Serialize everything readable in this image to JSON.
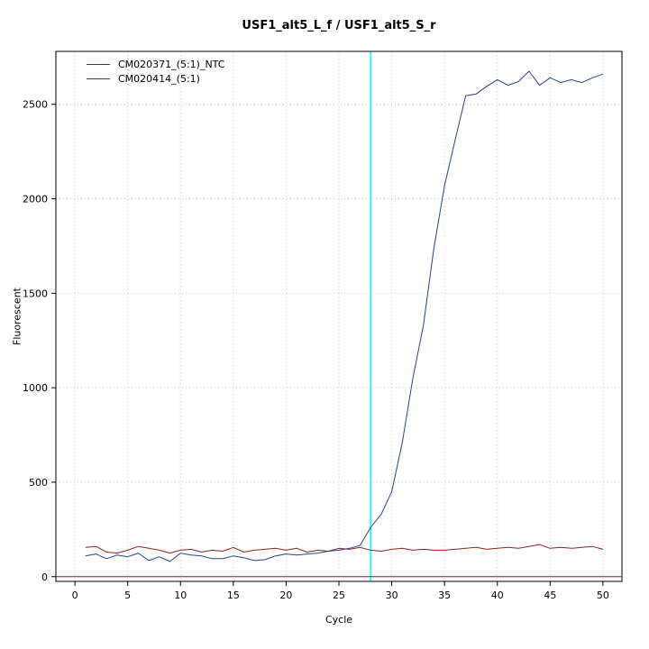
{
  "chart_data": {
    "type": "line",
    "title": "USF1_alt5_L_f / USF1_alt5_S_r",
    "xlabel": "Cycle",
    "ylabel": "Fluorescent",
    "xlim": [
      -1.8,
      51.8
    ],
    "ylim": [
      -25,
      2780
    ],
    "xticks": [
      0,
      5,
      10,
      15,
      20,
      25,
      30,
      35,
      40,
      45,
      50
    ],
    "yticks": [
      0,
      500,
      1000,
      1500,
      2000,
      2500
    ],
    "grid": true,
    "grid_color": "#c4c4c4",
    "legend_position": "top-left",
    "ct_line": {
      "x": 28,
      "color": "#00ffff"
    },
    "baseline": {
      "y": 0,
      "color": "#8b2323"
    },
    "x": [
      1,
      2,
      3,
      4,
      5,
      6,
      7,
      8,
      9,
      10,
      11,
      12,
      13,
      14,
      15,
      16,
      17,
      18,
      19,
      20,
      21,
      22,
      23,
      24,
      25,
      26,
      27,
      28,
      29,
      30,
      31,
      32,
      33,
      34,
      35,
      36,
      37,
      38,
      39,
      40,
      41,
      42,
      43,
      44,
      45,
      46,
      47,
      48,
      49,
      50
    ],
    "series": [
      {
        "name": "CM020371_(5:1)_NTC",
        "color": "#8b2323",
        "values": [
          155,
          160,
          130,
          125,
          140,
          160,
          150,
          140,
          125,
          140,
          145,
          130,
          140,
          135,
          155,
          130,
          140,
          145,
          150,
          140,
          150,
          130,
          140,
          135,
          150,
          145,
          155,
          140,
          135,
          145,
          150,
          140,
          145,
          140,
          140,
          145,
          150,
          155,
          145,
          150,
          155,
          150,
          160,
          170,
          150,
          155,
          150,
          155,
          160,
          145
        ]
      },
      {
        "name": "CM020414_(5:1)",
        "color": "#27408b",
        "values": [
          110,
          120,
          95,
          115,
          105,
          125,
          85,
          105,
          80,
          125,
          115,
          110,
          95,
          95,
          110,
          100,
          85,
          90,
          110,
          120,
          115,
          120,
          125,
          135,
          140,
          150,
          165,
          260,
          330,
          450,
          710,
          1050,
          1330,
          1740,
          2070,
          2310,
          2545,
          2555,
          2595,
          2630,
          2600,
          2620,
          2675,
          2600,
          2640,
          2615,
          2630,
          2615,
          2640,
          2660
        ]
      }
    ]
  }
}
